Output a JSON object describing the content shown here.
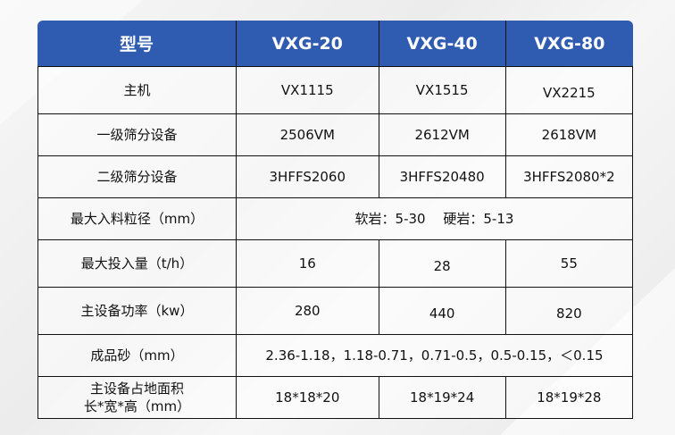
{
  "header": [
    "型号",
    "VXG-20",
    "VXG-40",
    "VXG-80"
  ],
  "rows": [
    {
      "label": "主机",
      "values": [
        "VX1115",
        "VX1515",
        "VX2215"
      ]
    },
    {
      "label": "一级筛分设备",
      "values": [
        "2506VM",
        "2612VM",
        "2618VM"
      ]
    },
    {
      "label": "二级筛分设备",
      "values": [
        "3HFFS2060",
        "3HFFS20480",
        "3HFFS2080*2"
      ]
    },
    {
      "label": "最大入料粒径（mm）",
      "merged": "软岩：5-30　 硬岩：5-13"
    },
    {
      "label": "最大投入量（t/h）",
      "values": [
        "16",
        "28",
        "55"
      ]
    },
    {
      "label": "主设备功率（kw）",
      "values": [
        "280",
        "440",
        "820"
      ]
    },
    {
      "label": "成品砂（mm）",
      "merged": "2.36-1.18，1.18-0.71，0.71-0.5，0.5-0.15，＜0.15"
    },
    {
      "label_line1": "主设备占地面积",
      "label_line2": "长*宽*高（mm）",
      "values": [
        "18*18*20",
        "18*19*24",
        "18*19*28"
      ]
    }
  ],
  "colors": {
    "header_bg": "#2f5bb0",
    "header_text": "#ffffff"
  }
}
